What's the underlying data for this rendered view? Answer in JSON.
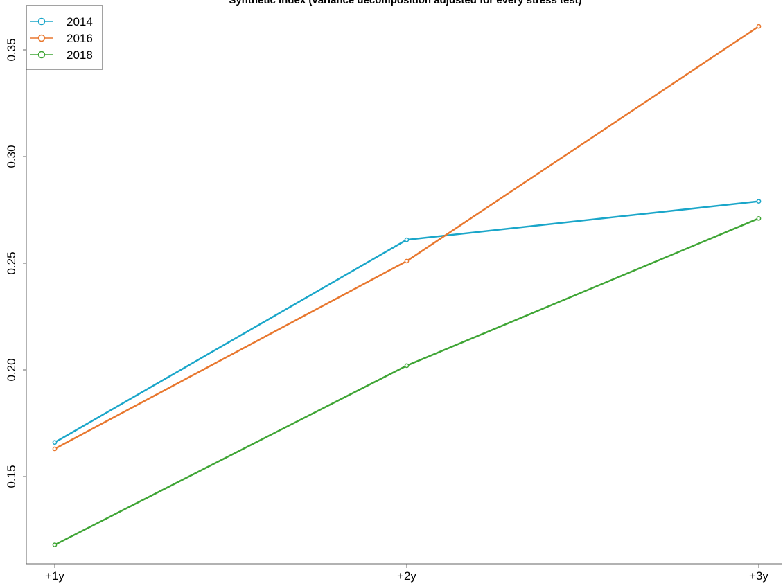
{
  "chart_data": {
    "type": "line",
    "title": "Synthetic index (variance decomposition adjusted for every stress test)",
    "xlabel": "",
    "ylabel": "",
    "categories": [
      "+1y",
      "+2y",
      "+3y"
    ],
    "ylim": [
      0.11,
      0.365
    ],
    "yticks": [
      0.15,
      0.2,
      0.25,
      0.3,
      0.35
    ],
    "ytick_labels": [
      "0.15",
      "0.20",
      "0.25",
      "0.30",
      "0.35"
    ],
    "grid": false,
    "legend": "top-left",
    "series": [
      {
        "name": "2014",
        "color": "#1aa6c9",
        "values": [
          0.166,
          0.261,
          0.279
        ]
      },
      {
        "name": "2016",
        "color": "#e8772e",
        "values": [
          0.163,
          0.251,
          0.361
        ]
      },
      {
        "name": "2018",
        "color": "#3fa535",
        "values": [
          0.118,
          0.202,
          0.271
        ]
      }
    ]
  }
}
